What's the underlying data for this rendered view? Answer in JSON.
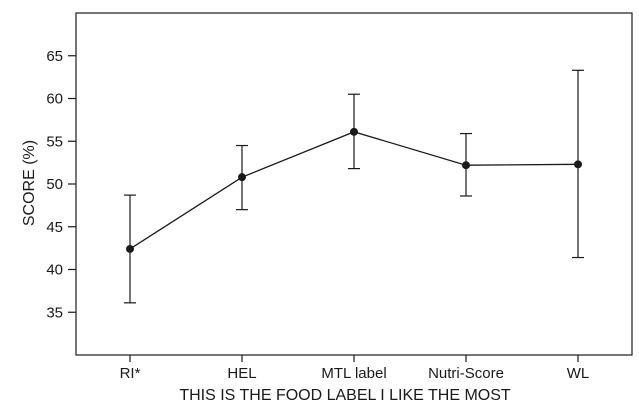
{
  "chart_data": {
    "type": "line",
    "title": "",
    "xlabel": "THIS IS THE FOOD LABEL I LIKE THE MOST",
    "ylabel": "SCORE (%)",
    "ylim": [
      30,
      70
    ],
    "yticks": [
      35,
      40,
      45,
      50,
      55,
      60,
      65
    ],
    "ytick_labels": [
      "35",
      "40",
      "45",
      "50",
      "55",
      "60",
      "65"
    ],
    "categories": [
      "RI*",
      "HEL",
      "MTL label",
      "Nutri-Score",
      "WL"
    ],
    "series": [
      {
        "values": [
          42.4,
          50.8,
          56.1,
          52.2,
          52.3
        ],
        "error_low": [
          36.1,
          47.0,
          51.8,
          48.6,
          41.4
        ],
        "error_high": [
          48.7,
          54.5,
          60.5,
          55.9,
          63.3
        ]
      }
    ],
    "grid": false,
    "legend": "none",
    "colors": {
      "line": "#1a1a1a",
      "marker": "#1a1a1a",
      "axis": "#1a1a1a"
    }
  }
}
